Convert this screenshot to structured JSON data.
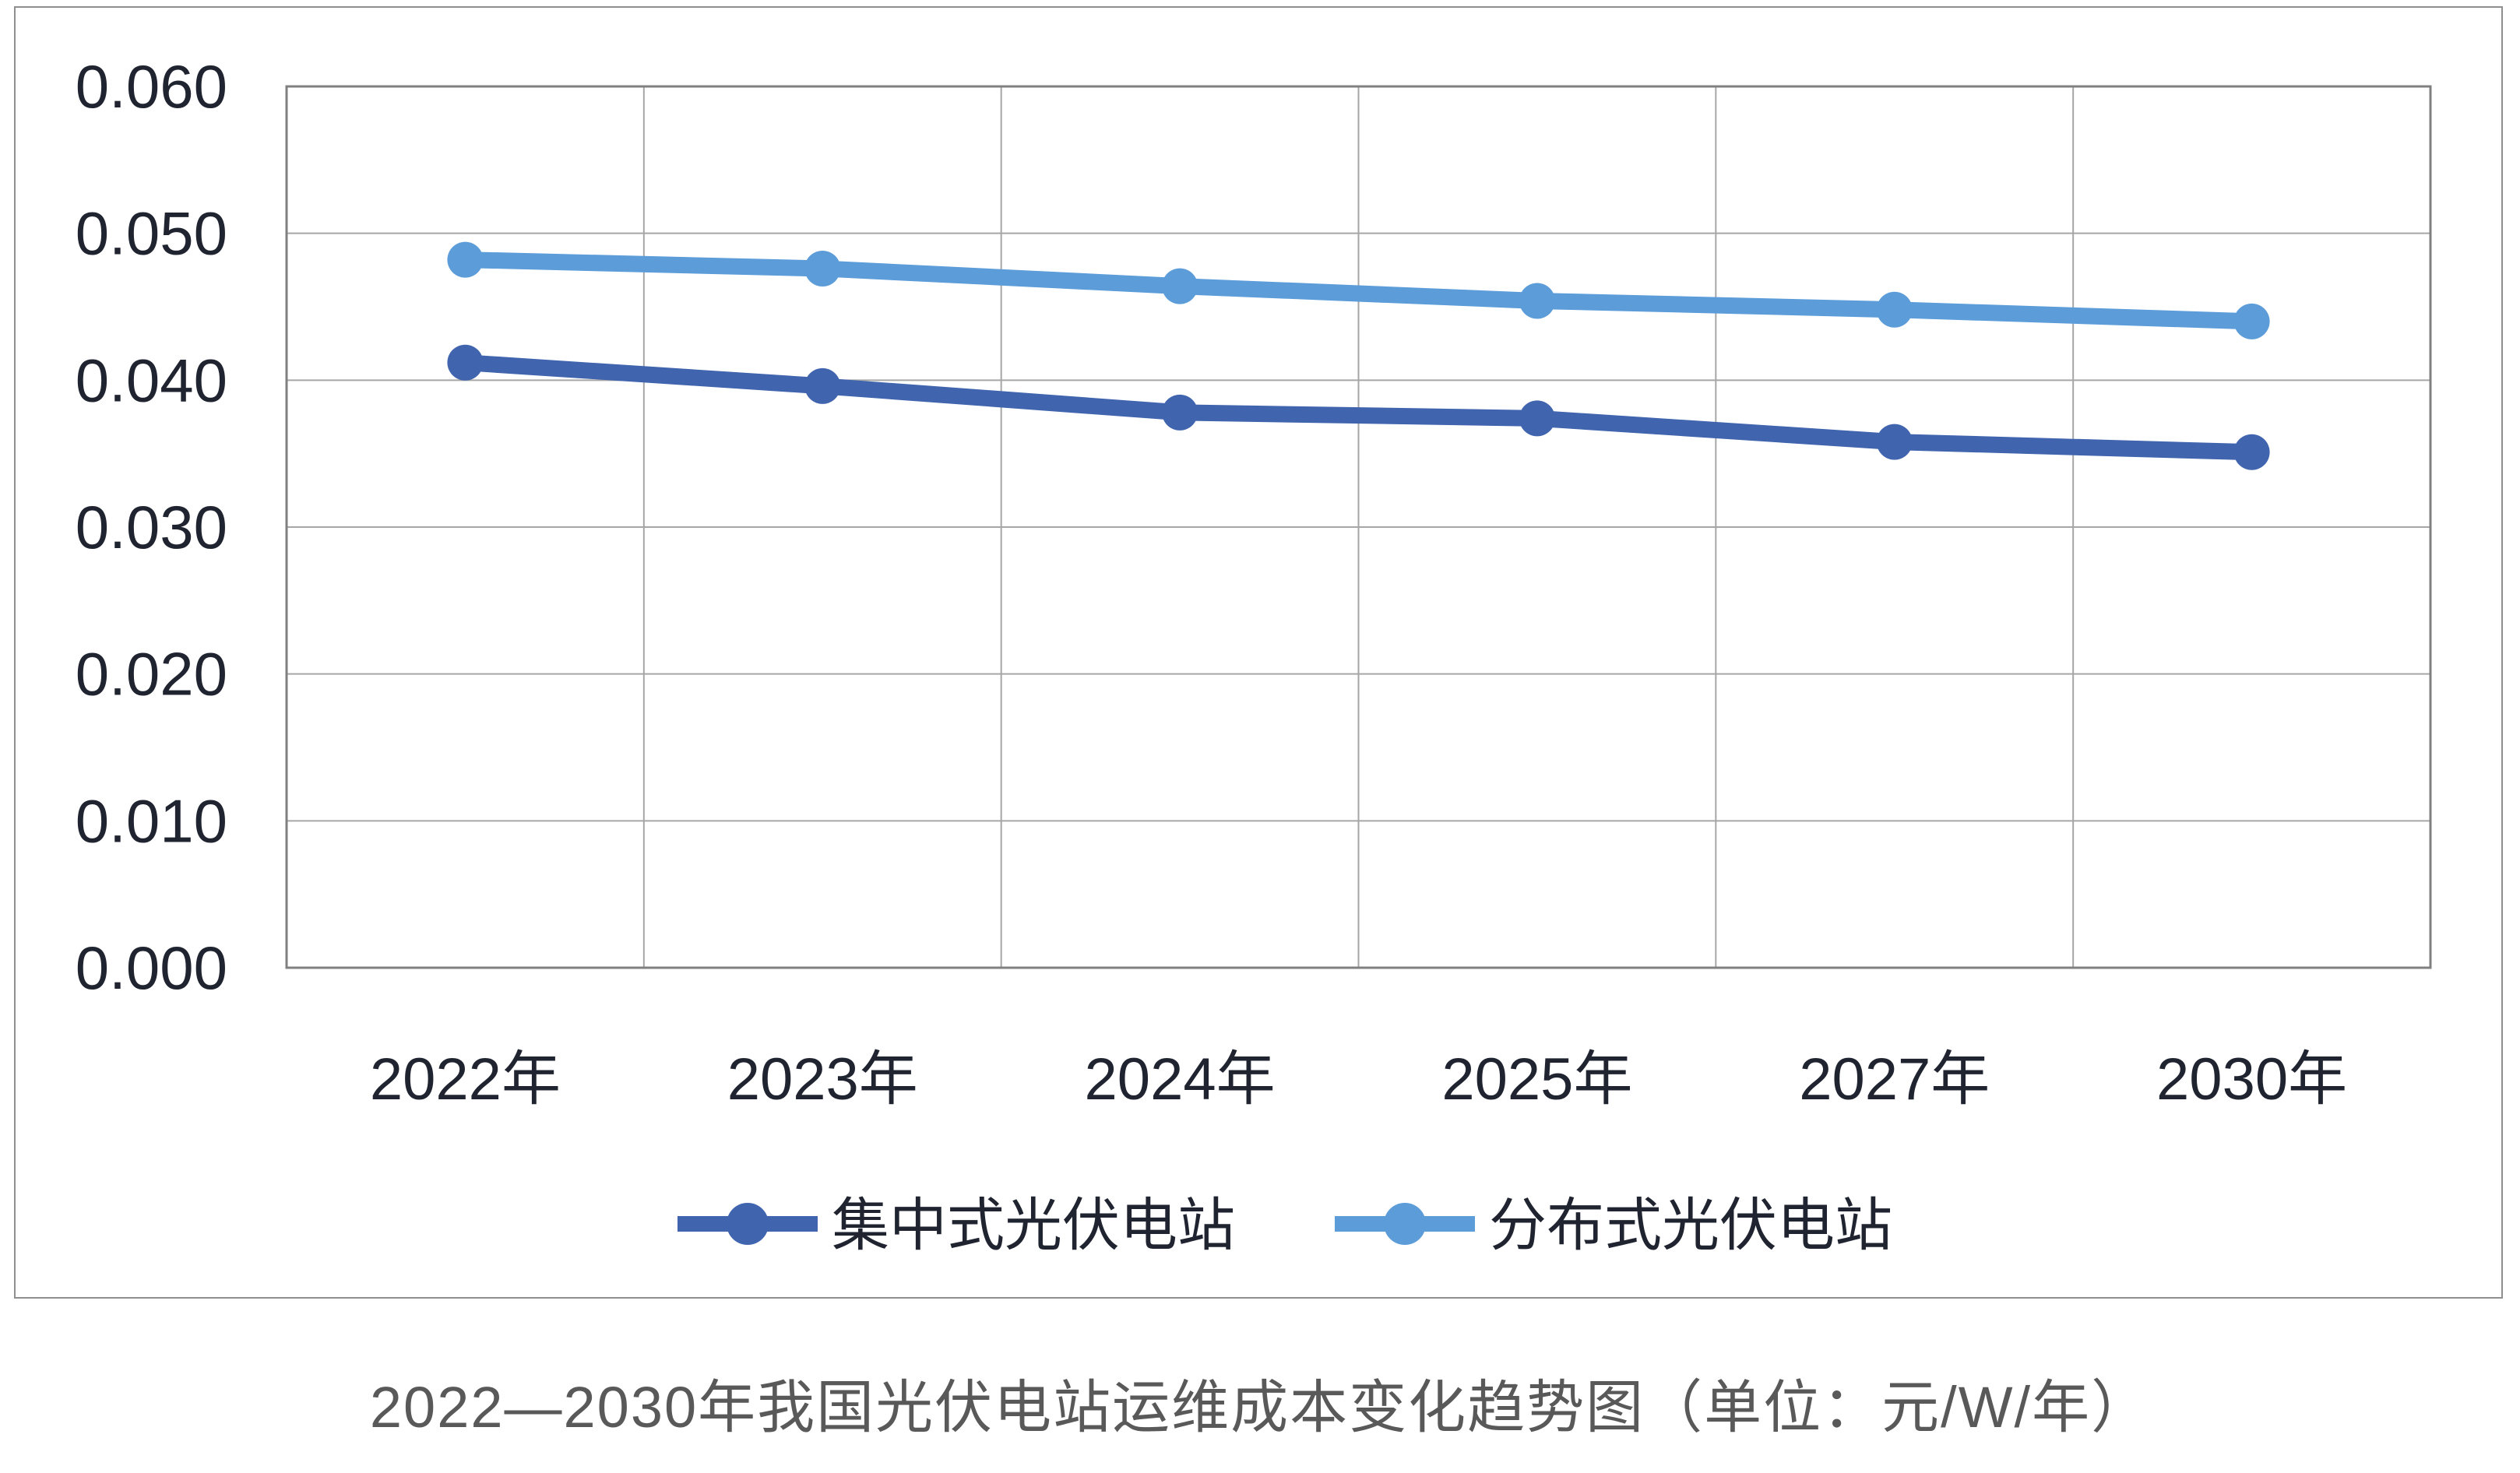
{
  "colors": {
    "axis_text": "#1f2430",
    "title_text": "#595959",
    "gridline": "#a6a6a6",
    "plot_border": "#808080",
    "frame_border": "#8f8f8f",
    "series_centralized": "#4064ae",
    "series_distributed": "#5b9cd9"
  },
  "chart_data": {
    "type": "line",
    "title": "2022—2030年我国光伏电站运维成本变化趋势图（单位：元/W/年）",
    "categories": [
      "2022年",
      "2023年",
      "2024年",
      "2025年",
      "2027年",
      "2030年"
    ],
    "series": [
      {
        "name": "集中式光伏电站",
        "color": "#4064ae",
        "values": [
          0.0412,
          0.0396,
          0.0378,
          0.0374,
          0.0358,
          0.0351
        ]
      },
      {
        "name": "分布式光伏电站",
        "color": "#5b9cd9",
        "values": [
          0.0482,
          0.0476,
          0.0464,
          0.0454,
          0.0448,
          0.044
        ]
      }
    ],
    "xlabel": "",
    "ylabel": "",
    "ylim": [
      0,
      0.06
    ],
    "y_tick_step": 0.01,
    "y_tick_labels": [
      "0.000",
      "0.010",
      "0.020",
      "0.030",
      "0.040",
      "0.050",
      "0.060"
    ],
    "grid": "major-horizontal-and-vertical",
    "plot_area_border": true,
    "legend_position": "bottom-center",
    "marker": "circle"
  }
}
